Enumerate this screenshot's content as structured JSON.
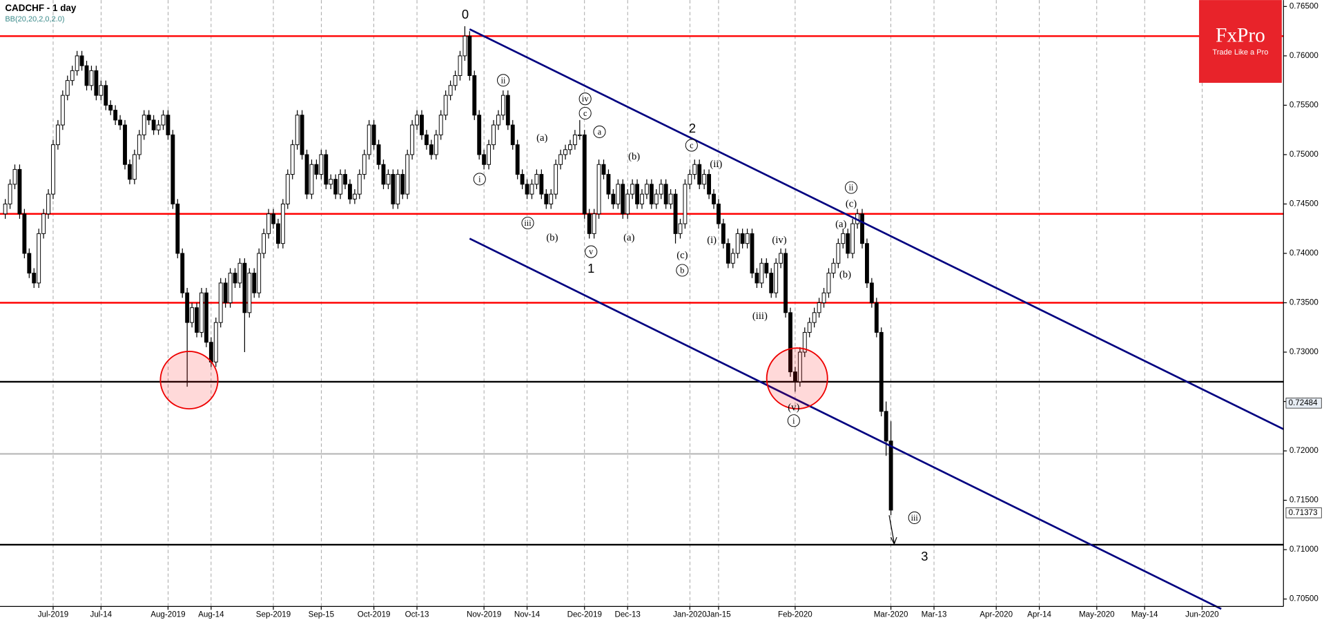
{
  "chart_data": {
    "type": "candlestick",
    "title": "CADCHF - 1 day",
    "subtitle": "BB(20,20,2,0,2.0)",
    "brand": {
      "name": "FxPro",
      "tagline": "Trade Like a Pro"
    },
    "xlim": [
      -1.1,
      267
    ],
    "xticks": [
      {
        "value": 10,
        "label": "Jul-2019"
      },
      {
        "value": 20,
        "label": "Jul-14"
      },
      {
        "value": 34,
        "label": "Aug-2019"
      },
      {
        "value": 43,
        "label": "Aug-14"
      },
      {
        "value": 56,
        "label": "Sep-2019"
      },
      {
        "value": 66,
        "label": "Sep-15"
      },
      {
        "value": 77,
        "label": "Oct-2019"
      },
      {
        "value": 86,
        "label": "Oct-13"
      },
      {
        "value": 100,
        "label": "Nov-2019"
      },
      {
        "value": 109,
        "label": "Nov-14"
      },
      {
        "value": 121,
        "label": "Dec-2019"
      },
      {
        "value": 130,
        "label": "Dec-13"
      },
      {
        "value": 143,
        "label": "Jan-2020"
      },
      {
        "value": 149,
        "label": "Jan-15"
      },
      {
        "value": 165,
        "label": "Feb-2020"
      },
      {
        "value": 185,
        "label": "Mar-2020"
      },
      {
        "value": 194,
        "label": "Mar-13"
      },
      {
        "value": 207,
        "label": "Apr-2020"
      },
      {
        "value": 216,
        "label": "Apr-14"
      },
      {
        "value": 228,
        "label": "May-2020"
      },
      {
        "value": 238,
        "label": "May-14"
      },
      {
        "value": 250,
        "label": "Jun-2020"
      }
    ],
    "ylim": [
      0.70425,
      0.76565
    ],
    "yticks": [
      {
        "value": 0.705,
        "label": "0.70500"
      },
      {
        "value": 0.71,
        "label": "0.71000"
      },
      {
        "value": 0.715,
        "label": "0.71500"
      },
      {
        "value": 0.72,
        "label": "0.72000"
      },
      {
        "value": 0.725,
        "label": "0.72500"
      },
      {
        "value": 0.73,
        "label": "0.73000"
      },
      {
        "value": 0.735,
        "label": "0.73500"
      },
      {
        "value": 0.74,
        "label": "0.74000"
      },
      {
        "value": 0.745,
        "label": "0.74500"
      },
      {
        "value": 0.75,
        "label": "0.75000"
      },
      {
        "value": 0.755,
        "label": "0.75500"
      },
      {
        "value": 0.76,
        "label": "0.76000"
      },
      {
        "value": 0.765,
        "label": "0.76500"
      }
    ],
    "grid": true,
    "up_color": "#ffffff",
    "down_color": "#000000",
    "open": [
      0.744,
      0.745,
      0.747,
      0.7485,
      0.744,
      0.74,
      0.738,
      0.737,
      0.742,
      0.744,
      0.746,
      0.751,
      0.753,
      0.756,
      0.7575,
      0.7585,
      0.76,
      0.759,
      0.757,
      0.7585,
      0.756,
      0.757,
      0.755,
      0.7545,
      0.7535,
      0.753,
      0.749,
      0.7475,
      0.75,
      0.752,
      0.754,
      0.7535,
      0.7525,
      0.753,
      0.754,
      0.752,
      0.745,
      0.74,
      0.736,
      0.733,
      0.7345,
      0.732,
      0.736,
      0.731,
      0.729,
      0.733,
      0.737,
      0.735,
      0.738,
      0.737,
      0.739,
      0.734,
      0.738,
      0.736,
      0.74,
      0.742,
      0.744,
      0.743,
      0.741,
      0.745,
      0.748,
      0.751,
      0.754,
      0.75,
      0.746,
      0.749,
      0.748,
      0.75,
      0.747,
      0.7475,
      0.746,
      0.748,
      0.747,
      0.7455,
      0.746,
      0.748,
      0.75,
      0.753,
      0.751,
      0.749,
      0.747,
      0.748,
      0.745,
      0.748,
      0.746,
      0.75,
      0.753,
      0.754,
      0.752,
      0.751,
      0.75,
      0.752,
      0.754,
      0.756,
      0.757,
      0.758,
      0.76,
      0.762,
      0.758,
      0.754,
      0.75,
      0.749,
      0.751,
      0.753,
      0.754,
      0.756,
      0.753,
      0.751,
      0.748,
      0.747,
      0.746,
      0.747,
      0.748,
      0.746,
      0.745,
      0.746,
      0.749,
      0.75,
      0.7505,
      0.751,
      0.752,
      0.752,
      0.744,
      0.742,
      0.744,
      0.749,
      0.748,
      0.746,
      0.745,
      0.747,
      0.744,
      0.746,
      0.747,
      0.745,
      0.746,
      0.747,
      0.745,
      0.746,
      0.747,
      0.745,
      0.746,
      0.742,
      0.743,
      0.747,
      0.748,
      0.749,
      0.747,
      0.748,
      0.746,
      0.745,
      0.743,
      0.741,
      0.739,
      0.74,
      0.742,
      0.741,
      0.742,
      0.738,
      0.737,
      0.739,
      0.738,
      0.736,
      0.739,
      0.74,
      0.734,
      0.728,
      0.727,
      0.73,
      0.732,
      0.733,
      0.734,
      0.735,
      0.736,
      0.738,
      0.739,
      0.741,
      0.742,
      0.74,
      0.743,
      0.744,
      0.741,
      0.737,
      0.735,
      0.732,
      0.724,
      0.721
    ],
    "high": [
      0.7455,
      0.7475,
      0.749,
      0.749,
      0.7445,
      0.7405,
      0.7385,
      0.7425,
      0.7445,
      0.7465,
      0.7515,
      0.7535,
      0.7565,
      0.758,
      0.759,
      0.7605,
      0.7605,
      0.7595,
      0.759,
      0.759,
      0.7575,
      0.7575,
      0.7555,
      0.755,
      0.754,
      0.7535,
      0.7495,
      0.7505,
      0.7525,
      0.7545,
      0.7545,
      0.754,
      0.7535,
      0.7545,
      0.7545,
      0.7525,
      0.7455,
      0.7405,
      0.7365,
      0.735,
      0.735,
      0.7365,
      0.7365,
      0.7315,
      0.7335,
      0.7375,
      0.7375,
      0.7385,
      0.7385,
      0.7395,
      0.7395,
      0.7385,
      0.7385,
      0.7405,
      0.7425,
      0.7445,
      0.7445,
      0.7435,
      0.7455,
      0.7485,
      0.7515,
      0.7545,
      0.7545,
      0.7505,
      0.7495,
      0.7495,
      0.7505,
      0.7505,
      0.748,
      0.748,
      0.7485,
      0.7485,
      0.7475,
      0.7465,
      0.7485,
      0.7505,
      0.7535,
      0.7535,
      0.7515,
      0.7495,
      0.7485,
      0.7485,
      0.7485,
      0.7485,
      0.7505,
      0.7535,
      0.7545,
      0.7545,
      0.7525,
      0.7515,
      0.7525,
      0.7545,
      0.7565,
      0.7575,
      0.7585,
      0.7605,
      0.763,
      0.7625,
      0.7585,
      0.7545,
      0.7505,
      0.7515,
      0.7535,
      0.7545,
      0.7565,
      0.7565,
      0.7535,
      0.7515,
      0.7485,
      0.7475,
      0.7475,
      0.7485,
      0.7485,
      0.7465,
      0.7465,
      0.7495,
      0.7505,
      0.751,
      0.7515,
      0.7525,
      0.7535,
      0.7525,
      0.7445,
      0.7445,
      0.7495,
      0.7495,
      0.7485,
      0.7465,
      0.7475,
      0.7475,
      0.7465,
      0.7475,
      0.7475,
      0.7465,
      0.7475,
      0.7475,
      0.7465,
      0.7475,
      0.7475,
      0.7465,
      0.7465,
      0.7435,
      0.7475,
      0.7485,
      0.7495,
      0.7495,
      0.7485,
      0.7485,
      0.7465,
      0.7455,
      0.7435,
      0.7415,
      0.7405,
      0.7425,
      0.7425,
      0.7425,
      0.7425,
      0.7385,
      0.7395,
      0.7395,
      0.7385,
      0.7395,
      0.7405,
      0.7405,
      0.7345,
      0.7285,
      0.7305,
      0.7325,
      0.7335,
      0.7345,
      0.7355,
      0.7365,
      0.7385,
      0.7395,
      0.7415,
      0.7425,
      0.7425,
      0.7435,
      0.7445,
      0.7445,
      0.7415,
      0.7375,
      0.7355,
      0.7325,
      0.725,
      0.723
    ],
    "low": [
      0.7435,
      0.7445,
      0.7465,
      0.7435,
      0.7395,
      0.7375,
      0.7365,
      0.7365,
      0.7415,
      0.7435,
      0.7455,
      0.7505,
      0.7525,
      0.7555,
      0.757,
      0.758,
      0.7585,
      0.7565,
      0.7565,
      0.7555,
      0.7555,
      0.7545,
      0.754,
      0.753,
      0.7525,
      0.7485,
      0.747,
      0.747,
      0.7495,
      0.7515,
      0.753,
      0.752,
      0.752,
      0.7525,
      0.7515,
      0.7445,
      0.7395,
      0.7355,
      0.7265,
      0.7325,
      0.7315,
      0.7315,
      0.7305,
      0.7285,
      0.7285,
      0.7325,
      0.7345,
      0.7345,
      0.7365,
      0.7365,
      0.73,
      0.7335,
      0.7355,
      0.7355,
      0.7395,
      0.7415,
      0.7425,
      0.7405,
      0.7405,
      0.7445,
      0.7475,
      0.7505,
      0.7495,
      0.7455,
      0.7455,
      0.7475,
      0.7475,
      0.7465,
      0.7465,
      0.7455,
      0.7455,
      0.7465,
      0.745,
      0.745,
      0.7455,
      0.7475,
      0.7495,
      0.7505,
      0.7485,
      0.7465,
      0.7465,
      0.7445,
      0.7445,
      0.7455,
      0.7455,
      0.7495,
      0.7525,
      0.7515,
      0.7505,
      0.7495,
      0.7495,
      0.7515,
      0.7535,
      0.7555,
      0.7565,
      0.7575,
      0.7595,
      0.7575,
      0.7535,
      0.7495,
      0.7485,
      0.7485,
      0.7505,
      0.7525,
      0.7535,
      0.7525,
      0.7505,
      0.7475,
      0.7465,
      0.7455,
      0.7455,
      0.7465,
      0.7455,
      0.7445,
      0.7445,
      0.7455,
      0.7485,
      0.7495,
      0.75,
      0.7505,
      0.7515,
      0.7435,
      0.7415,
      0.7415,
      0.7435,
      0.7475,
      0.7455,
      0.7445,
      0.7445,
      0.7435,
      0.7435,
      0.7455,
      0.7445,
      0.7445,
      0.7455,
      0.7445,
      0.7445,
      0.7455,
      0.7445,
      0.7445,
      0.741,
      0.7415,
      0.7425,
      0.7465,
      0.7475,
      0.7465,
      0.7465,
      0.7455,
      0.7445,
      0.7425,
      0.7405,
      0.7385,
      0.7385,
      0.7395,
      0.7405,
      0.7405,
      0.7375,
      0.7365,
      0.7365,
      0.7375,
      0.7355,
      0.7355,
      0.7385,
      0.7335,
      0.7275,
      0.726,
      0.7265,
      0.7295,
      0.7315,
      0.7325,
      0.7335,
      0.7345,
      0.7355,
      0.7375,
      0.7385,
      0.7405,
      0.7395,
      0.7395,
      0.7425,
      0.7405,
      0.7365,
      0.7345,
      0.7315,
      0.7235,
      0.7195,
      0.7135
    ],
    "close": [
      0.745,
      0.747,
      0.7485,
      0.744,
      0.74,
      0.738,
      0.737,
      0.742,
      0.744,
      0.746,
      0.751,
      0.753,
      0.756,
      0.7575,
      0.7585,
      0.76,
      0.759,
      0.757,
      0.7585,
      0.756,
      0.757,
      0.755,
      0.7545,
      0.7535,
      0.753,
      0.749,
      0.7475,
      0.75,
      0.752,
      0.754,
      0.7535,
      0.7525,
      0.753,
      0.754,
      0.752,
      0.745,
      0.74,
      0.736,
      0.733,
      0.7345,
      0.732,
      0.736,
      0.731,
      0.729,
      0.733,
      0.737,
      0.735,
      0.738,
      0.737,
      0.739,
      0.734,
      0.738,
      0.736,
      0.74,
      0.742,
      0.744,
      0.743,
      0.741,
      0.745,
      0.748,
      0.751,
      0.754,
      0.75,
      0.746,
      0.749,
      0.748,
      0.75,
      0.747,
      0.7475,
      0.746,
      0.748,
      0.747,
      0.7455,
      0.746,
      0.748,
      0.75,
      0.753,
      0.751,
      0.749,
      0.747,
      0.748,
      0.745,
      0.748,
      0.746,
      0.75,
      0.753,
      0.754,
      0.752,
      0.751,
      0.75,
      0.752,
      0.754,
      0.756,
      0.757,
      0.758,
      0.76,
      0.762,
      0.758,
      0.754,
      0.75,
      0.749,
      0.751,
      0.753,
      0.754,
      0.756,
      0.753,
      0.751,
      0.748,
      0.747,
      0.746,
      0.747,
      0.748,
      0.746,
      0.745,
      0.746,
      0.749,
      0.75,
      0.7505,
      0.751,
      0.752,
      0.752,
      0.744,
      0.742,
      0.744,
      0.749,
      0.748,
      0.746,
      0.745,
      0.747,
      0.744,
      0.746,
      0.747,
      0.745,
      0.746,
      0.747,
      0.745,
      0.746,
      0.747,
      0.745,
      0.746,
      0.742,
      0.743,
      0.747,
      0.748,
      0.749,
      0.747,
      0.748,
      0.746,
      0.745,
      0.743,
      0.741,
      0.739,
      0.74,
      0.742,
      0.741,
      0.742,
      0.738,
      0.737,
      0.739,
      0.738,
      0.736,
      0.739,
      0.74,
      0.734,
      0.728,
      0.727,
      0.73,
      0.732,
      0.733,
      0.734,
      0.735,
      0.736,
      0.738,
      0.739,
      0.741,
      0.742,
      0.74,
      0.743,
      0.744,
      0.741,
      0.737,
      0.735,
      0.732,
      0.724,
      0.721,
      0.714
    ],
    "levels": [
      {
        "value": 0.762,
        "color": "#ff0000"
      },
      {
        "value": 0.744,
        "color": "#ff0000"
      },
      {
        "value": 0.735,
        "color": "#ff0000"
      },
      {
        "value": 0.727,
        "color": "#000000"
      },
      {
        "value": 0.7197,
        "color": "#c0c0c0"
      },
      {
        "value": 0.7105,
        "color": "#000000"
      }
    ],
    "trend_lines": [
      {
        "x": [
          97,
          267
        ],
        "y": [
          0.7627,
          0.7222
        ],
        "color": "#000080"
      },
      {
        "x": [
          97,
          254
        ],
        "y": [
          0.7415,
          0.704
        ],
        "color": "#000080"
      }
    ],
    "price_labels": [
      {
        "value": 0.72484,
        "label": "0.72484"
      },
      {
        "value": 0.71373,
        "label": "0.71373"
      }
    ],
    "annotations": [
      "0",
      "ii",
      "i",
      "iv",
      "c",
      "(a)",
      "a",
      "(b)",
      "iii",
      "(b)",
      "(a)",
      "v",
      "1",
      "2",
      "c",
      "(ii)",
      "(c)",
      "b",
      "(i)",
      "(iv)",
      "(iii)",
      "(v)",
      "i",
      "ii",
      "(c)",
      "(a)",
      "(b)",
      "iii",
      "3"
    ]
  }
}
